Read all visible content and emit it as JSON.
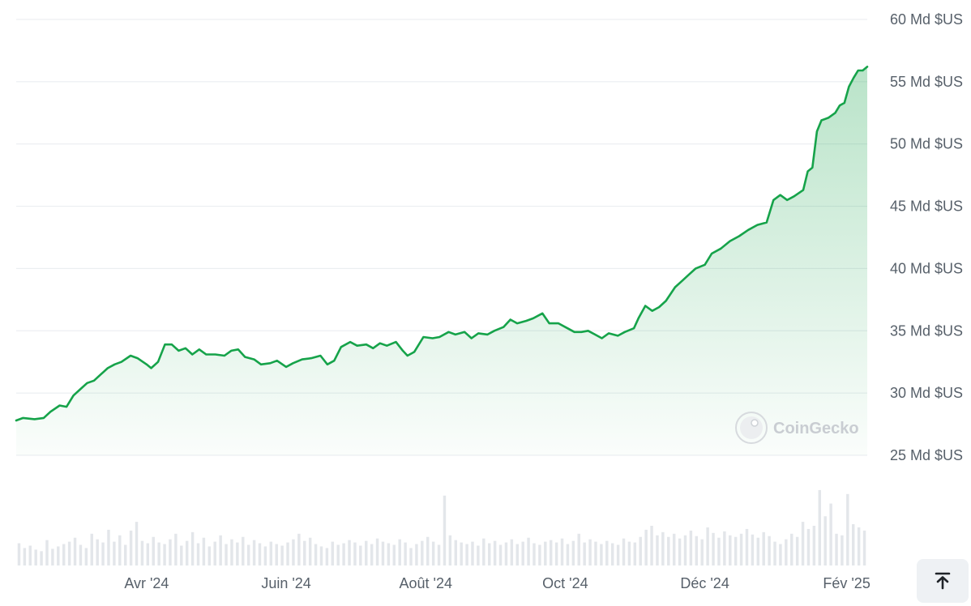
{
  "chart_data": {
    "type": "area",
    "y_unit": "Md $US",
    "yticks": [
      {
        "value": 25,
        "label": "25 Md $US"
      },
      {
        "value": 30,
        "label": "30 Md $US"
      },
      {
        "value": 35,
        "label": "35 Md $US"
      },
      {
        "value": 40,
        "label": "40 Md $US"
      },
      {
        "value": 45,
        "label": "45 Md $US"
      },
      {
        "value": 50,
        "label": "50 Md $US"
      },
      {
        "value": 55,
        "label": "55 Md $US"
      },
      {
        "value": 60,
        "label": "60 Md $US"
      }
    ],
    "ylim": [
      25,
      60
    ],
    "xlim": [
      "2024-02-04",
      "2025-02-10"
    ],
    "xticks": [
      {
        "date": "2024-04-01",
        "label": "Avr '24"
      },
      {
        "date": "2024-06-01",
        "label": "Juin '24"
      },
      {
        "date": "2024-08-01",
        "label": "Août '24"
      },
      {
        "date": "2024-10-01",
        "label": "Oct '24"
      },
      {
        "date": "2024-12-01",
        "label": "Déc '24"
      },
      {
        "date": "2025-02-01",
        "label": "Fév '25"
      }
    ],
    "grid": true,
    "series": [
      {
        "color": "#16a34a",
        "points": [
          [
            "2024-02-04",
            27.8
          ],
          [
            "2024-02-07",
            28.0
          ],
          [
            "2024-02-12",
            27.9
          ],
          [
            "2024-02-16",
            28.0
          ],
          [
            "2024-02-19",
            28.5
          ],
          [
            "2024-02-23",
            29.0
          ],
          [
            "2024-02-26",
            28.9
          ],
          [
            "2024-02-29",
            29.8
          ],
          [
            "2024-03-03",
            30.3
          ],
          [
            "2024-03-06",
            30.8
          ],
          [
            "2024-03-09",
            31.0
          ],
          [
            "2024-03-12",
            31.5
          ],
          [
            "2024-03-15",
            32.0
          ],
          [
            "2024-03-18",
            32.3
          ],
          [
            "2024-03-21",
            32.5
          ],
          [
            "2024-03-25",
            33.0
          ],
          [
            "2024-03-28",
            32.8
          ],
          [
            "2024-04-01",
            32.3
          ],
          [
            "2024-04-03",
            32.0
          ],
          [
            "2024-04-06",
            32.5
          ],
          [
            "2024-04-09",
            33.9
          ],
          [
            "2024-04-12",
            33.9
          ],
          [
            "2024-04-15",
            33.4
          ],
          [
            "2024-04-18",
            33.6
          ],
          [
            "2024-04-21",
            33.1
          ],
          [
            "2024-04-24",
            33.5
          ],
          [
            "2024-04-27",
            33.1
          ],
          [
            "2024-05-01",
            33.1
          ],
          [
            "2024-05-05",
            33.0
          ],
          [
            "2024-05-08",
            33.4
          ],
          [
            "2024-05-11",
            33.5
          ],
          [
            "2024-05-14",
            32.9
          ],
          [
            "2024-05-18",
            32.7
          ],
          [
            "2024-05-21",
            32.3
          ],
          [
            "2024-05-25",
            32.4
          ],
          [
            "2024-05-28",
            32.6
          ],
          [
            "2024-06-01",
            32.1
          ],
          [
            "2024-06-04",
            32.4
          ],
          [
            "2024-06-08",
            32.7
          ],
          [
            "2024-06-12",
            32.8
          ],
          [
            "2024-06-16",
            33.0
          ],
          [
            "2024-06-19",
            32.3
          ],
          [
            "2024-06-22",
            32.6
          ],
          [
            "2024-06-25",
            33.7
          ],
          [
            "2024-06-29",
            34.1
          ],
          [
            "2024-07-02",
            33.8
          ],
          [
            "2024-07-06",
            33.9
          ],
          [
            "2024-07-09",
            33.6
          ],
          [
            "2024-07-12",
            34.0
          ],
          [
            "2024-07-15",
            33.8
          ],
          [
            "2024-07-19",
            34.1
          ],
          [
            "2024-07-22",
            33.4
          ],
          [
            "2024-07-24",
            33.0
          ],
          [
            "2024-07-27",
            33.3
          ],
          [
            "2024-07-31",
            34.5
          ],
          [
            "2024-08-04",
            34.4
          ],
          [
            "2024-08-07",
            34.5
          ],
          [
            "2024-08-11",
            34.9
          ],
          [
            "2024-08-14",
            34.7
          ],
          [
            "2024-08-18",
            34.9
          ],
          [
            "2024-08-21",
            34.4
          ],
          [
            "2024-08-24",
            34.8
          ],
          [
            "2024-08-28",
            34.7
          ],
          [
            "2024-08-31",
            35.0
          ],
          [
            "2024-09-04",
            35.3
          ],
          [
            "2024-09-07",
            35.9
          ],
          [
            "2024-09-10",
            35.6
          ],
          [
            "2024-09-14",
            35.8
          ],
          [
            "2024-09-17",
            36.0
          ],
          [
            "2024-09-21",
            36.4
          ],
          [
            "2024-09-24",
            35.6
          ],
          [
            "2024-09-28",
            35.6
          ],
          [
            "2024-10-02",
            35.2
          ],
          [
            "2024-10-05",
            34.9
          ],
          [
            "2024-10-08",
            34.9
          ],
          [
            "2024-10-11",
            35.0
          ],
          [
            "2024-10-14",
            34.7
          ],
          [
            "2024-10-17",
            34.4
          ],
          [
            "2024-10-20",
            34.8
          ],
          [
            "2024-10-24",
            34.6
          ],
          [
            "2024-10-27",
            34.9
          ],
          [
            "2024-10-31",
            35.2
          ],
          [
            "2024-11-02",
            36.0
          ],
          [
            "2024-11-05",
            37.0
          ],
          [
            "2024-11-08",
            36.6
          ],
          [
            "2024-11-11",
            36.9
          ],
          [
            "2024-11-14",
            37.4
          ],
          [
            "2024-11-18",
            38.5
          ],
          [
            "2024-11-21",
            39.0
          ],
          [
            "2024-11-24",
            39.5
          ],
          [
            "2024-11-27",
            40.0
          ],
          [
            "2024-12-01",
            40.3
          ],
          [
            "2024-12-04",
            41.2
          ],
          [
            "2024-12-08",
            41.6
          ],
          [
            "2024-12-12",
            42.2
          ],
          [
            "2024-12-16",
            42.6
          ],
          [
            "2024-12-20",
            43.1
          ],
          [
            "2024-12-24",
            43.5
          ],
          [
            "2024-12-28",
            43.7
          ],
          [
            "2024-12-31",
            45.5
          ],
          [
            "2025-01-03",
            45.9
          ],
          [
            "2025-01-06",
            45.5
          ],
          [
            "2025-01-09",
            45.8
          ],
          [
            "2025-01-13",
            46.3
          ],
          [
            "2025-01-15",
            47.8
          ],
          [
            "2025-01-17",
            48.1
          ],
          [
            "2025-01-19",
            51.0
          ],
          [
            "2025-01-21",
            51.9
          ],
          [
            "2025-01-24",
            52.1
          ],
          [
            "2025-01-27",
            52.5
          ],
          [
            "2025-01-29",
            53.1
          ],
          [
            "2025-01-31",
            53.3
          ],
          [
            "2025-02-02",
            54.6
          ],
          [
            "2025-02-04",
            55.3
          ],
          [
            "2025-02-06",
            55.9
          ],
          [
            "2025-02-08",
            55.9
          ],
          [
            "2025-02-10",
            56.2
          ]
        ]
      }
    ],
    "volume_bars": [
      0.28,
      0.22,
      0.25,
      0.2,
      0.18,
      0.32,
      0.21,
      0.24,
      0.27,
      0.3,
      0.35,
      0.26,
      0.22,
      0.4,
      0.33,
      0.29,
      0.45,
      0.3,
      0.38,
      0.26,
      0.44,
      0.55,
      0.31,
      0.28,
      0.36,
      0.29,
      0.27,
      0.33,
      0.4,
      0.25,
      0.31,
      0.42,
      0.28,
      0.35,
      0.24,
      0.3,
      0.38,
      0.27,
      0.33,
      0.29,
      0.36,
      0.26,
      0.32,
      0.28,
      0.24,
      0.3,
      0.27,
      0.25,
      0.29,
      0.33,
      0.4,
      0.31,
      0.35,
      0.27,
      0.24,
      0.22,
      0.3,
      0.26,
      0.28,
      0.32,
      0.29,
      0.25,
      0.31,
      0.27,
      0.34,
      0.3,
      0.28,
      0.26,
      0.33,
      0.29,
      0.22,
      0.27,
      0.31,
      0.36,
      0.3,
      0.26,
      0.88,
      0.38,
      0.32,
      0.29,
      0.27,
      0.3,
      0.25,
      0.34,
      0.28,
      0.31,
      0.26,
      0.29,
      0.33,
      0.27,
      0.3,
      0.35,
      0.28,
      0.26,
      0.3,
      0.32,
      0.29,
      0.34,
      0.27,
      0.31,
      0.4,
      0.29,
      0.33,
      0.3,
      0.27,
      0.31,
      0.28,
      0.26,
      0.34,
      0.3,
      0.29,
      0.36,
      0.45,
      0.5,
      0.38,
      0.42,
      0.36,
      0.4,
      0.34,
      0.38,
      0.44,
      0.37,
      0.33,
      0.48,
      0.41,
      0.35,
      0.43,
      0.38,
      0.36,
      0.4,
      0.46,
      0.39,
      0.35,
      0.42,
      0.37,
      0.3,
      0.27,
      0.33,
      0.4,
      0.36,
      0.55,
      0.46,
      0.5,
      0.95,
      0.62,
      0.78,
      0.4,
      0.38,
      0.9,
      0.52,
      0.48,
      0.44
    ],
    "watermark": "CoinGecko"
  },
  "controls": {
    "scroll_top_icon": "arrow-up-to-line-icon"
  }
}
